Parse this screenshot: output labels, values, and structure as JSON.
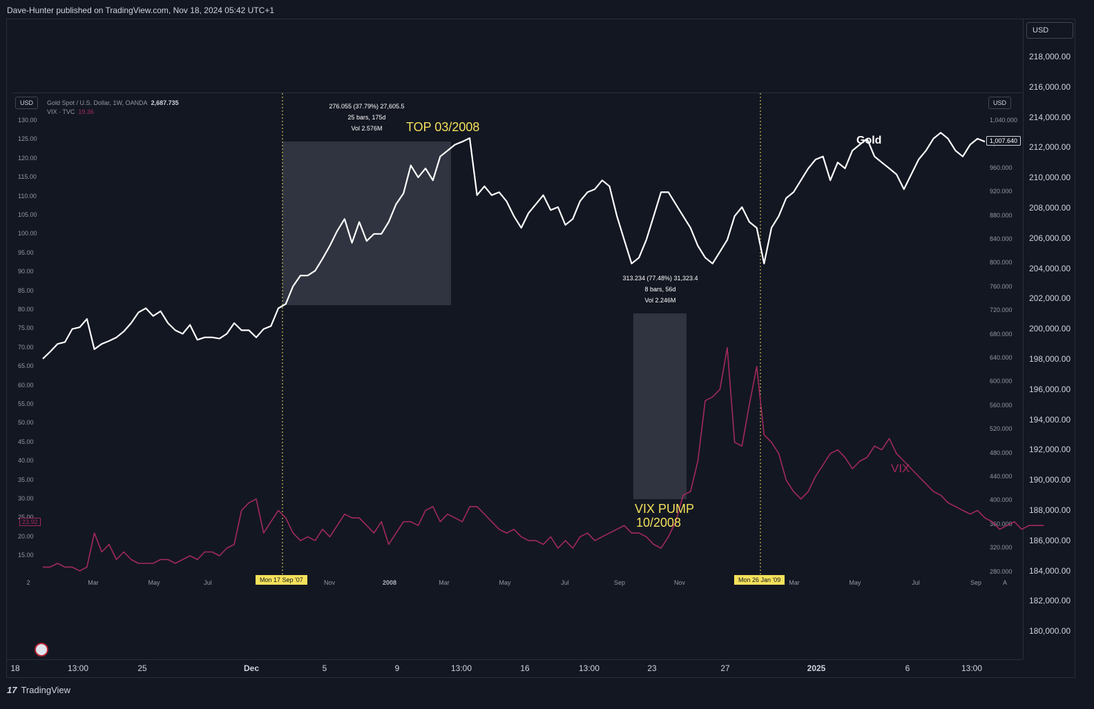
{
  "header": {
    "published": "Dave-Hunter published on TradingView.com, Nov 18, 2024 05:42 UTC+1"
  },
  "outer_chart": {
    "currency": "USD",
    "price_labels": [
      "218,000.00",
      "216,000.00",
      "214,000.00",
      "212,000.00",
      "210,000.00",
      "208,000.00",
      "206,000.00",
      "204,000.00",
      "202,000.00",
      "200,000.00",
      "198,000.00",
      "196,000.00",
      "194,000.00",
      "192,000.00",
      "190,000.00",
      "188,000.00",
      "186,000.00",
      "184,000.00",
      "182,000.00",
      "180,000.00"
    ],
    "time_labels": [
      "18",
      "13:00",
      "25",
      "Dec",
      "5",
      "9",
      "13:00",
      "16",
      "13:00",
      "23",
      "27",
      "2025",
      "6",
      "13:00"
    ]
  },
  "inner_chart": {
    "left_currency": "USD",
    "right_currency": "USD",
    "legend": {
      "gold_title": "Gold Spot / U.S. Dollar, 1W, OANDA",
      "gold_value": "2,687.735",
      "vix_title": "VIX · TVC",
      "vix_value": "19.36"
    },
    "left_axis_labels": [
      "130.00",
      "125.00",
      "120.00",
      "115.00",
      "110.00",
      "105.00",
      "100.00",
      "95.00",
      "90.00",
      "85.00",
      "80.00",
      "75.00",
      "70.00",
      "65.00",
      "60.00",
      "55.00",
      "50.00",
      "45.00",
      "40.00",
      "35.00",
      "30.00",
      "25.00",
      "20.00",
      "15.00"
    ],
    "right_axis_labels": [
      "1,040.000",
      "1,000.000",
      "960.000",
      "920.000",
      "880.000",
      "840.000",
      "800.000",
      "760.000",
      "720.000",
      "680.000",
      "640.000",
      "600.000",
      "560.000",
      "520.000",
      "480.000",
      "440.000",
      "400.000",
      "360.000",
      "320.000",
      "280.000"
    ],
    "time_labels": [
      "2",
      "Mar",
      "May",
      "Jul",
      "Nov",
      "2008",
      "Mar",
      "May",
      "Jul",
      "Sep",
      "Nov",
      "Mar",
      "May",
      "Jul",
      "Sep",
      "A"
    ],
    "date_tag_1": "Mon 17 Sep '07",
    "date_tag_2": "Mon 26 Jan '09",
    "gold_price_tag": "1,007.640",
    "vix_left_tag": "23.92"
  },
  "annotations": {
    "top_label": "TOP 03/2008",
    "vix_pump_line1": "VIX PUMP",
    "vix_pump_line2": "10/2008",
    "gold_label": "Gold",
    "vix_label": "VIX",
    "measure1": {
      "line1": "276.055 (37.79%) 27,605.5",
      "line2": "25 bars, 175d",
      "line3": "Vol 2.576M"
    },
    "measure2": {
      "line1": "313.234 (77.48%) 31,323.4",
      "line2": "8 bars, 56d",
      "line3": "Vol 2.246M"
    }
  },
  "footer": {
    "brand": "TradingView",
    "logo": "17"
  },
  "colors": {
    "background": "#131722",
    "gold_line": "#ffffff",
    "vix_line": "#a32a5a",
    "annotation": "#f5e15b",
    "box": "#363a45"
  },
  "chart_data": {
    "type": "line",
    "title": "",
    "x_range": [
      "2007-01",
      "2009-09"
    ],
    "series": [
      {
        "name": "Gold",
        "axis": "right",
        "values": [
          640,
          652,
          665,
          668,
          690,
          693,
          707,
          656,
          665,
          670,
          676,
          686,
          700,
          718,
          725,
          712,
          720,
          700,
          688,
          682,
          697,
          672,
          676,
          676,
          674,
          682,
          700,
          688,
          688,
          676,
          690,
          695,
          725,
          732,
          762,
          780,
          780,
          788,
          808,
          830,
          855,
          875,
          835,
          870,
          838,
          850,
          850,
          870,
          900,
          918,
          965,
          945,
          960,
          940,
          980,
          990,
          1000,
          1005,
          1011,
          915,
          930,
          915,
          920,
          905,
          880,
          860,
          885,
          900,
          915,
          890,
          895,
          865,
          875,
          905,
          920,
          925,
          940,
          930,
          880,
          840,
          800,
          810,
          840,
          880,
          920,
          920,
          900,
          880,
          860,
          830,
          810,
          800,
          820,
          840,
          880,
          895,
          870,
          860,
          800,
          860,
          880,
          910,
          920,
          940,
          960,
          975,
          980,
          940,
          970,
          960,
          990,
          1000,
          1010,
          980,
          970,
          960,
          950,
          925,
          950,
          975,
          990,
          1010,
          1020,
          1010,
          990,
          980,
          1000,
          1010,
          1005
        ],
        "note_left_axis_equivalent": "inner left axis 15–130 maps to right axis 280–1040"
      },
      {
        "name": "VIX",
        "axis": "left",
        "values": [
          12,
          12,
          13,
          12,
          12,
          11,
          12,
          21,
          16,
          18,
          14,
          16,
          14,
          13,
          13,
          13,
          14,
          14,
          13,
          14,
          15,
          14,
          16,
          16,
          15,
          17,
          18,
          27,
          29,
          30,
          21,
          24,
          27,
          25,
          21,
          19,
          20,
          19,
          22,
          20,
          23,
          26,
          25,
          25,
          23,
          21,
          24,
          18,
          21,
          24,
          24,
          23,
          27,
          28,
          24,
          26,
          25,
          24,
          28,
          28,
          26,
          24,
          22,
          21,
          22,
          20,
          19,
          19,
          18,
          20,
          17,
          19,
          17,
          20,
          21,
          19,
          20,
          21,
          22,
          23,
          21,
          21,
          20,
          18,
          17,
          20,
          24,
          31,
          32,
          40,
          56,
          57,
          59,
          70,
          45,
          44,
          55,
          65,
          47,
          45,
          42,
          35,
          32,
          30,
          32,
          36,
          39,
          42,
          43,
          41,
          38,
          40,
          41,
          44,
          43,
          46,
          42,
          40,
          38,
          36,
          34,
          32,
          31,
          29,
          28,
          27,
          26,
          27,
          25,
          24,
          22,
          23,
          24,
          22,
          23,
          23,
          23
        ]
      }
    ],
    "left_axis_range": [
      12,
      130
    ],
    "right_axis_range": [
      280,
      1040
    ],
    "annotations": [
      {
        "text": "TOP 03/2008",
        "date": "2008-03"
      },
      {
        "text": "VIX PUMP 10/2008",
        "date": "2008-10"
      }
    ],
    "vertical_markers": [
      "Mon 17 Sep '07",
      "Mon 26 Jan '09"
    ]
  }
}
